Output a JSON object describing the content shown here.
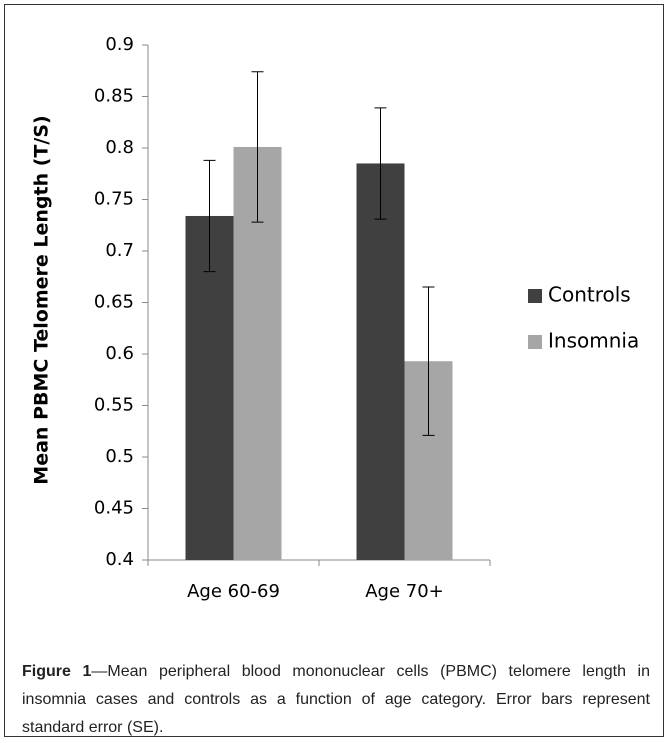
{
  "chart_data": {
    "type": "bar",
    "y_label": "Mean PBMC Telomere Length (T/S)",
    "categories": [
      "Age 60-69",
      "Age 70+"
    ],
    "series": [
      {
        "name": "Controls",
        "color": "#404040",
        "values": [
          0.734,
          0.785
        ],
        "errors": [
          0.054,
          0.054
        ]
      },
      {
        "name": "Insomnia",
        "color": "#a6a6a6",
        "values": [
          0.801,
          0.593
        ],
        "errors": [
          0.073,
          0.072
        ]
      }
    ],
    "ylim": [
      0.4,
      0.9
    ],
    "yticks": [
      0.4,
      0.45,
      0.5,
      0.55,
      0.6,
      0.65,
      0.7,
      0.75,
      0.8,
      0.85,
      0.9
    ],
    "grid": false,
    "legend": "right"
  },
  "caption": {
    "label": "Figure 1",
    "text": "—Mean peripheral blood mononuclear cells (PBMC) telomere length in insomnia cases and controls as a function of age category. Error bars represent standard error (SE)."
  }
}
